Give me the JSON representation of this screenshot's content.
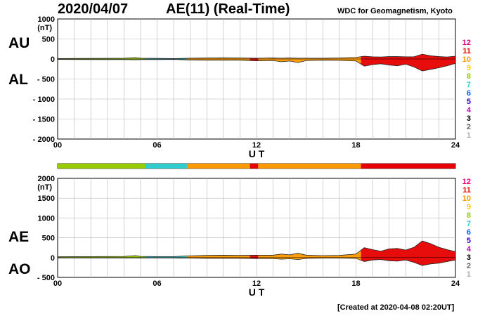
{
  "header": {
    "date": "2020/04/07",
    "title": "AE(11) (Real-Time)",
    "credit": "WDC for Geomagnetism, Kyoto"
  },
  "footer": {
    "created": "[Created at 2020-04-08 02:20UT]"
  },
  "legend": {
    "levels": [
      "12",
      "11",
      "10",
      "9",
      "8",
      "7",
      "6",
      "5",
      "4",
      "3",
      "2",
      "1"
    ],
    "colors": [
      "#e6007e",
      "#e60000",
      "#ff9900",
      "#ffcc00",
      "#99cc00",
      "#33cccc",
      "#0066ff",
      "#3300cc",
      "#cc00cc",
      "#000000",
      "#666666",
      "#aaaaaa"
    ]
  },
  "chart_data": [
    {
      "type": "area",
      "panel": "AU / AL",
      "labels": {
        "upper": "AU",
        "lower": "AL"
      },
      "xlabel": "U T",
      "ylabel_unit": "(nT)",
      "xlim": [
        0,
        24
      ],
      "ylim": [
        -2000,
        1000
      ],
      "x_ticks": [
        "00",
        "06",
        "12",
        "18",
        "24"
      ],
      "y_ticks": [
        "1000",
        "500",
        "0",
        "- 500",
        "- 1000",
        "- 1500",
        "- 2000"
      ],
      "grid": true,
      "series": [
        {
          "x": [
            0,
            2,
            4,
            4.7,
            5,
            6,
            7,
            8,
            9,
            10,
            11,
            12,
            13,
            13.5,
            14,
            14.5,
            15,
            16,
            17,
            18,
            18.5,
            19,
            19.5,
            20,
            20.5,
            21,
            21.5,
            22,
            22.5,
            23,
            23.5,
            24
          ],
          "upper": [
            10,
            15,
            20,
            35,
            20,
            15,
            10,
            20,
            25,
            30,
            25,
            20,
            25,
            20,
            25,
            20,
            20,
            20,
            25,
            40,
            70,
            55,
            50,
            60,
            60,
            55,
            55,
            120,
            80,
            60,
            50,
            70
          ],
          "lower": [
            -10,
            -15,
            -15,
            -20,
            -15,
            -15,
            -10,
            -25,
            -30,
            -30,
            -30,
            -45,
            -40,
            -70,
            -50,
            -90,
            -40,
            -30,
            -35,
            -50,
            -180,
            -140,
            -120,
            -150,
            -170,
            -130,
            -200,
            -300,
            -260,
            -220,
            -170,
            -110
          ]
        }
      ]
    },
    {
      "type": "area",
      "panel": "AE / AO",
      "labels": {
        "upper": "AE",
        "lower": "AO"
      },
      "xlabel": "U T",
      "ylabel_unit": "(nT)",
      "xlim": [
        0,
        24
      ],
      "ylim": [
        -500,
        2000
      ],
      "x_ticks": [
        "00",
        "06",
        "12",
        "18",
        "24"
      ],
      "y_ticks": [
        "2000",
        "1500",
        "1000",
        "500",
        "0",
        "- 500"
      ],
      "grid": true,
      "series": [
        {
          "x": [
            0,
            2,
            4,
            4.7,
            5,
            6,
            7,
            8,
            9,
            10,
            11,
            12,
            13,
            13.5,
            14,
            14.5,
            15,
            16,
            17,
            18,
            18.5,
            19,
            19.5,
            20,
            20.5,
            21,
            21.5,
            22,
            22.5,
            23,
            23.5,
            24
          ],
          "upper": [
            20,
            25,
            30,
            50,
            30,
            25,
            25,
            45,
            55,
            60,
            55,
            60,
            60,
            90,
            70,
            110,
            60,
            50,
            55,
            90,
            250,
            200,
            160,
            220,
            230,
            190,
            260,
            420,
            350,
            260,
            200,
            150
          ],
          "lower": [
            -10,
            -10,
            -10,
            -10,
            -10,
            -10,
            -10,
            -15,
            -20,
            -20,
            -20,
            -25,
            -25,
            -40,
            -30,
            -50,
            -20,
            -15,
            -15,
            -20,
            -100,
            -60,
            -50,
            -80,
            -90,
            -60,
            -120,
            -200,
            -160,
            -140,
            -100,
            -60
          ]
        }
      ]
    }
  ],
  "activity_bar": [
    {
      "from": 0,
      "to": 5.3,
      "color": "#99cc00"
    },
    {
      "from": 5.3,
      "to": 7.8,
      "color": "#33cccc"
    },
    {
      "from": 7.8,
      "to": 11.6,
      "color": "#ff9900"
    },
    {
      "from": 11.6,
      "to": 12.1,
      "color": "#e60000"
    },
    {
      "from": 12.1,
      "to": 18.3,
      "color": "#ff9900"
    },
    {
      "from": 18.3,
      "to": 24,
      "color": "#e60000"
    }
  ]
}
